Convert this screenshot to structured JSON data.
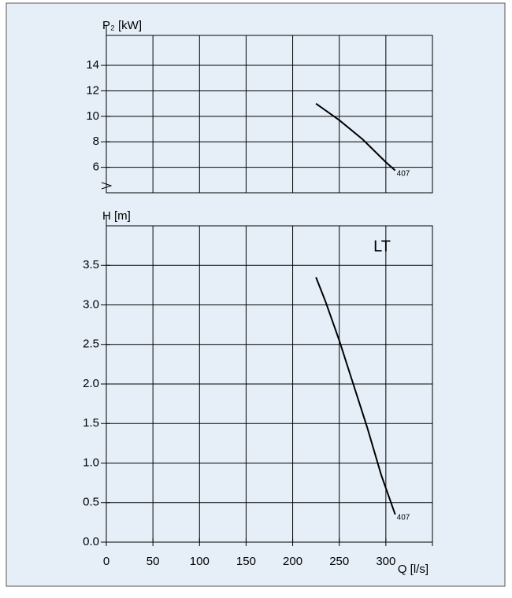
{
  "chart_data": [
    {
      "type": "line",
      "ylabel": "P₂  [kW]",
      "xlim": [
        0,
        350
      ],
      "xticks": [
        0,
        50,
        100,
        150,
        200,
        250,
        300
      ],
      "xtick_labels": false,
      "ylim": [
        4,
        16.35
      ],
      "yticks": [
        6,
        8,
        10,
        12,
        14
      ],
      "grid": true,
      "broken_axis": true,
      "series": [
        {
          "name": "407",
          "color": "#000000",
          "x": [
            225,
            250,
            275,
            300,
            310
          ],
          "values": [
            11.0,
            9.7,
            8.2,
            6.4,
            5.75
          ]
        }
      ]
    },
    {
      "type": "line",
      "ylabel": "H [m]",
      "xlabel": "Q [l/s]",
      "annotation": "LT",
      "xlim": [
        0,
        350
      ],
      "xticks": [
        0,
        50,
        100,
        150,
        200,
        250,
        300
      ],
      "xtick_labels": true,
      "ylim": [
        0,
        4
      ],
      "yticks": [
        {
          "value": 0,
          "label": "0.0"
        },
        0.5,
        {
          "value": 1,
          "label": "1.0"
        },
        1.5,
        {
          "value": 2,
          "label": "2.0"
        },
        2.5,
        {
          "value": 3,
          "label": "3.0"
        },
        3.5
      ],
      "grid": true,
      "series": [
        {
          "name": "407",
          "color": "#000000",
          "x": [
            225,
            235,
            250,
            265,
            280,
            295,
            310
          ],
          "values": [
            3.35,
            3.05,
            2.55,
            2.0,
            1.45,
            0.85,
            0.35
          ]
        }
      ]
    }
  ]
}
